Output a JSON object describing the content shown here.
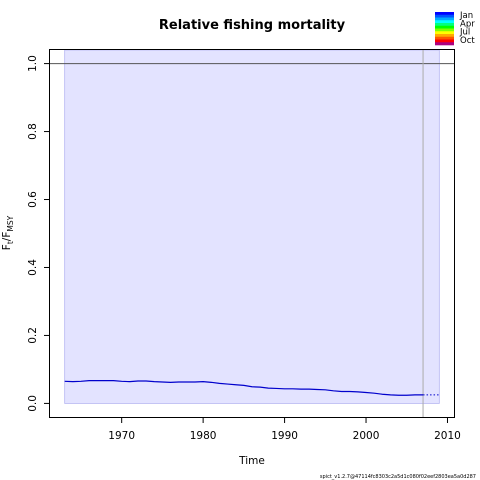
{
  "chart_data": {
    "type": "line",
    "title": "Relative fishing mortality",
    "xlabel": "Time",
    "ylabel": {
      "main": "F",
      "sub1": "t",
      "sep": "/F",
      "sub2": "MSY"
    },
    "xlim": [
      1961.2,
      2010.8
    ],
    "ylim": [
      -0.04,
      1.04
    ],
    "x_ticks": [
      1970,
      1980,
      1990,
      2000,
      2010
    ],
    "y_ticks": [
      0.0,
      0.2,
      0.4,
      0.6,
      0.8,
      1.0
    ],
    "x_tick_labels": [
      "1970",
      "1980",
      "1990",
      "2000",
      "2010"
    ],
    "y_tick_labels": [
      "0.0",
      "0.2",
      "0.4",
      "0.6",
      "0.8",
      "1.0"
    ],
    "reference_line": {
      "y": 1.0,
      "color": "#555555"
    },
    "vertical_line": {
      "x": 2007,
      "color": "#aaaaaa"
    },
    "ci_band": {
      "x_start": 1963,
      "x_end": 2009,
      "lower": 0.0,
      "upper": 1.04,
      "fill": "#e3e3ff",
      "edge": "#b6b6f2"
    },
    "series": [
      {
        "color": "#0000cc",
        "x": [
          1963,
          1964,
          1965,
          1966,
          1967,
          1968,
          1969,
          1970,
          1971,
          1972,
          1973,
          1974,
          1975,
          1976,
          1977,
          1978,
          1979,
          1980,
          1981,
          1982,
          1983,
          1984,
          1985,
          1986,
          1987,
          1988,
          1989,
          1990,
          1991,
          1992,
          1993,
          1994,
          1995,
          1996,
          1997,
          1998,
          1999,
          2000,
          2001,
          2002,
          2003,
          2004,
          2005,
          2006,
          2007
        ],
        "y": [
          0.065,
          0.064,
          0.065,
          0.067,
          0.067,
          0.067,
          0.067,
          0.065,
          0.064,
          0.066,
          0.066,
          0.064,
          0.063,
          0.062,
          0.063,
          0.063,
          0.063,
          0.064,
          0.062,
          0.059,
          0.057,
          0.055,
          0.053,
          0.049,
          0.048,
          0.045,
          0.044,
          0.043,
          0.043,
          0.042,
          0.042,
          0.041,
          0.04,
          0.037,
          0.035,
          0.035,
          0.034,
          0.032,
          0.03,
          0.027,
          0.025,
          0.024,
          0.024,
          0.025,
          0.025
        ]
      }
    ],
    "forecast": {
      "color": "#0000cc",
      "x": [
        2007,
        2008,
        2009
      ],
      "y": [
        0.025,
        0.025,
        0.025
      ]
    },
    "legend": {
      "position": "top-right",
      "entries": [
        "Jan",
        "Apr",
        "Jul",
        "Oct"
      ],
      "colors": [
        "#0000ff",
        "#0055ff",
        "#00aaff",
        "#00ffff",
        "#00ff80",
        "#00ff00",
        "#80ff00",
        "#ffff00",
        "#ffaa00",
        "#ff5500",
        "#ff0000",
        "#aa0080"
      ]
    }
  },
  "footer": "spict_v1.2.7@47114fc8303c2a5d1c080f02eef2803ea5a0d287"
}
